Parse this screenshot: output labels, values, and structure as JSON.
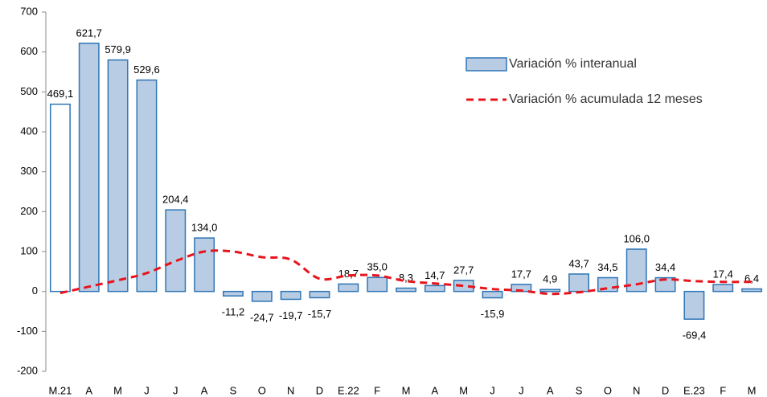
{
  "chart_data": {
    "type": "bar",
    "categories": [
      "M.21",
      "A",
      "M",
      "J",
      "J",
      "A",
      "S",
      "O",
      "N",
      "D",
      "E.22",
      "F",
      "M",
      "A",
      "M",
      "J",
      "J",
      "A",
      "S",
      "O",
      "N",
      "D",
      "E.23",
      "F",
      "M"
    ],
    "series": [
      {
        "name": "Variación % interanual",
        "type": "bar",
        "color": "#b8cce4",
        "edge_color": "#2e75b6",
        "colors": [
          "#ffffff",
          "#b8cce4",
          "#b8cce4",
          "#b8cce4",
          "#b8cce4",
          "#b8cce4",
          "#b8cce4",
          "#b8cce4",
          "#b8cce4",
          "#b8cce4",
          "#b8cce4",
          "#b8cce4",
          "#b8cce4",
          "#b8cce4",
          "#b8cce4",
          "#b8cce4",
          "#b8cce4",
          "#b8cce4",
          "#b8cce4",
          "#b8cce4",
          "#b8cce4",
          "#b8cce4",
          "#b8cce4",
          "#b8cce4",
          "#b8cce4"
        ],
        "values": [
          469.1,
          621.7,
          579.9,
          529.6,
          204.4,
          134.0,
          -11.2,
          -24.7,
          -19.7,
          -15.7,
          18.7,
          35.0,
          8.3,
          14.7,
          27.7,
          -15.9,
          17.7,
          4.9,
          43.7,
          34.5,
          106.0,
          34.4,
          -69.4,
          17.4,
          6.4
        ],
        "value_labels": [
          "469,1",
          "621,7",
          "579,9",
          "529,6",
          "204,4",
          "134,0",
          "-11,2",
          "-24,7",
          "-19,7",
          "-15,7",
          "18,7",
          "35,0",
          "8,3",
          "14,7",
          "27,7",
          "-15,9",
          "17,7",
          "4,9",
          "43,7",
          "34,5",
          "106,0",
          "34,4",
          "-69,4",
          "17,4",
          "6,4"
        ]
      },
      {
        "name": "Variación % acumulada 12 meses",
        "type": "line",
        "color": "#e8141c",
        "dashed": true,
        "values": [
          -4,
          12,
          28,
          46,
          76,
          100,
          100,
          86,
          80,
          32,
          40,
          40,
          26,
          20,
          14,
          6,
          2,
          -6,
          -2,
          8,
          18,
          30,
          26,
          24,
          24
        ]
      }
    ],
    "ylim": [
      -200,
      700
    ],
    "yticks": [
      -200,
      -100,
      0,
      100,
      200,
      300,
      400,
      500,
      600,
      700
    ],
    "legend": "upper-right"
  }
}
